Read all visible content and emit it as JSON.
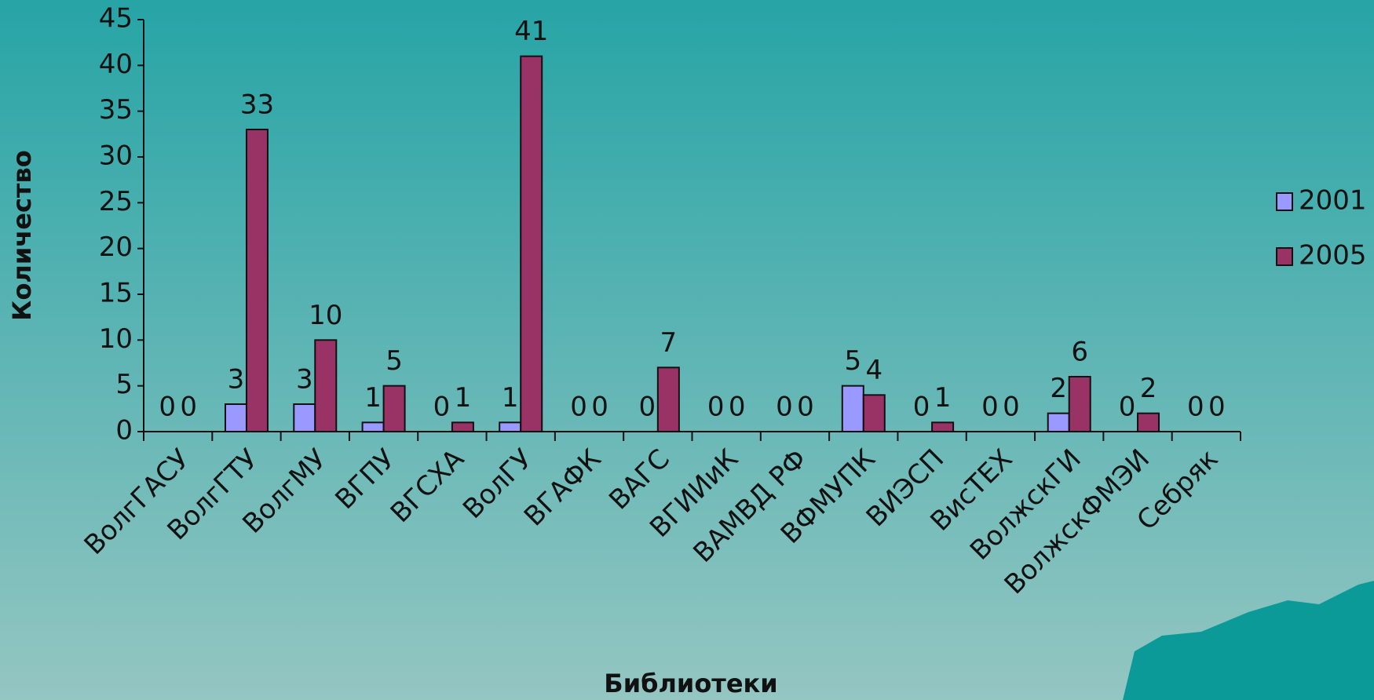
{
  "chart_data": {
    "type": "bar",
    "x_label": "Библиотеки",
    "y_label": "Количество",
    "categories": [
      "ВолгГАСУ",
      "ВолгГТУ",
      "ВолгМУ",
      "ВГПУ",
      "ВГСХА",
      "ВолГУ",
      "ВГАФК",
      "ВАГС",
      "ВГИИиК",
      "ВАМВД РФ",
      "ВФМУПК",
      "ВИЭСП",
      "ВисТЕХ",
      "ВолжскГИ",
      "ВолжскФМЭИ",
      "Себряк"
    ],
    "series": [
      {
        "name": "2001",
        "color": "#9999ff",
        "values": [
          0,
          3,
          3,
          1,
          0,
          1,
          0,
          0,
          0,
          0,
          5,
          0,
          0,
          2,
          0,
          0
        ]
      },
      {
        "name": "2005",
        "color": "#993366",
        "values": [
          0,
          33,
          10,
          5,
          1,
          41,
          0,
          7,
          0,
          0,
          4,
          1,
          0,
          6,
          2,
          0
        ]
      }
    ],
    "ylim": [
      0,
      45
    ],
    "yticks": [
      0,
      5,
      10,
      15,
      20,
      25,
      30,
      35,
      40,
      45
    ],
    "legend": "right"
  }
}
